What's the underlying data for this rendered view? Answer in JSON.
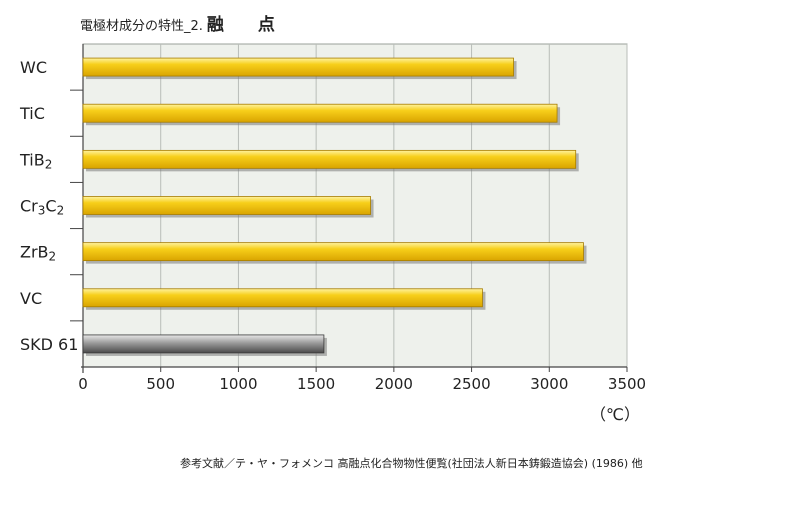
{
  "title": {
    "prefix": "電極材成分の特性_2.",
    "main": "融 点"
  },
  "unit_label": "（℃）",
  "source_note": "参考文献／テ・ヤ・フォメンコ 高融点化合物物性便覧(社団法人新日本鋳鍛造協会) (1986) 他",
  "colors": {
    "bar_gold": "#f5c400",
    "bar_gray": "#8a8a8a",
    "plot_bg": "#eef1ec",
    "grid": "#b8bdb8"
  },
  "chart_data": {
    "type": "bar",
    "orientation": "horizontal",
    "categories": [
      {
        "base": "WC",
        "sub": ""
      },
      {
        "base": "TiC",
        "sub": ""
      },
      {
        "base": "TiB",
        "sub": "2"
      },
      {
        "base": "Cr",
        "sub": "3",
        "base2": "C",
        "sub2": "2"
      },
      {
        "base": "ZrB",
        "sub": "2"
      },
      {
        "base": "VC",
        "sub": ""
      },
      {
        "base": "SKD 61",
        "sub": ""
      }
    ],
    "values": [
      2770,
      3050,
      3170,
      1850,
      3220,
      2570,
      1550
    ],
    "highlight": [
      false,
      false,
      false,
      false,
      false,
      false,
      true
    ],
    "xlim": [
      0,
      3500
    ],
    "xticks": [
      0,
      500,
      1000,
      1500,
      2000,
      2500,
      3000,
      3500
    ],
    "grid": true
  }
}
